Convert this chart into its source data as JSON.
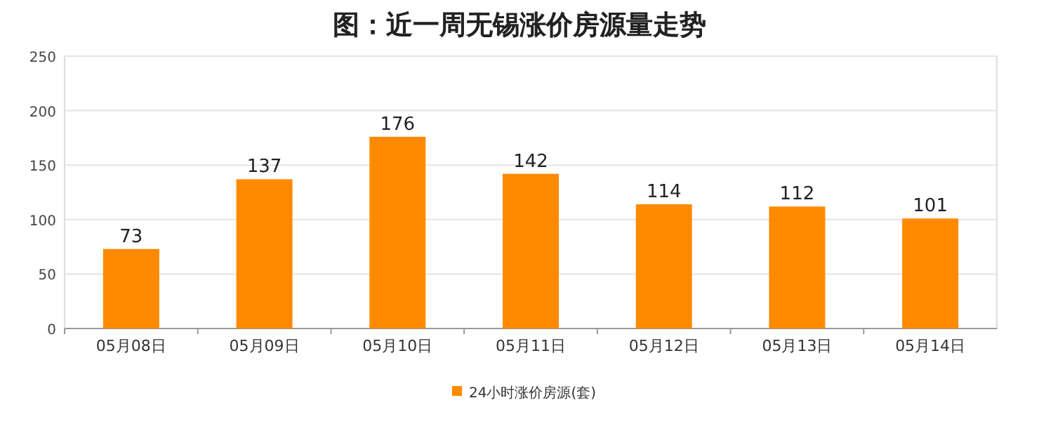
{
  "chart_data": {
    "type": "bar",
    "title": "图：近一周无锡涨价房源量走势",
    "categories": [
      "05月08日",
      "05月09日",
      "05月10日",
      "05月11日",
      "05月12日",
      "05月13日",
      "05月14日"
    ],
    "series": [
      {
        "name": "24小时涨价房源(套)",
        "color": "#ff8a00",
        "values": [
          73,
          137,
          176,
          142,
          114,
          112,
          101
        ]
      }
    ],
    "ylim": [
      0,
      250
    ],
    "yticks": [
      0,
      50,
      100,
      150,
      200,
      250
    ],
    "grid": "y",
    "legend": "bottom",
    "data_labels": true
  }
}
